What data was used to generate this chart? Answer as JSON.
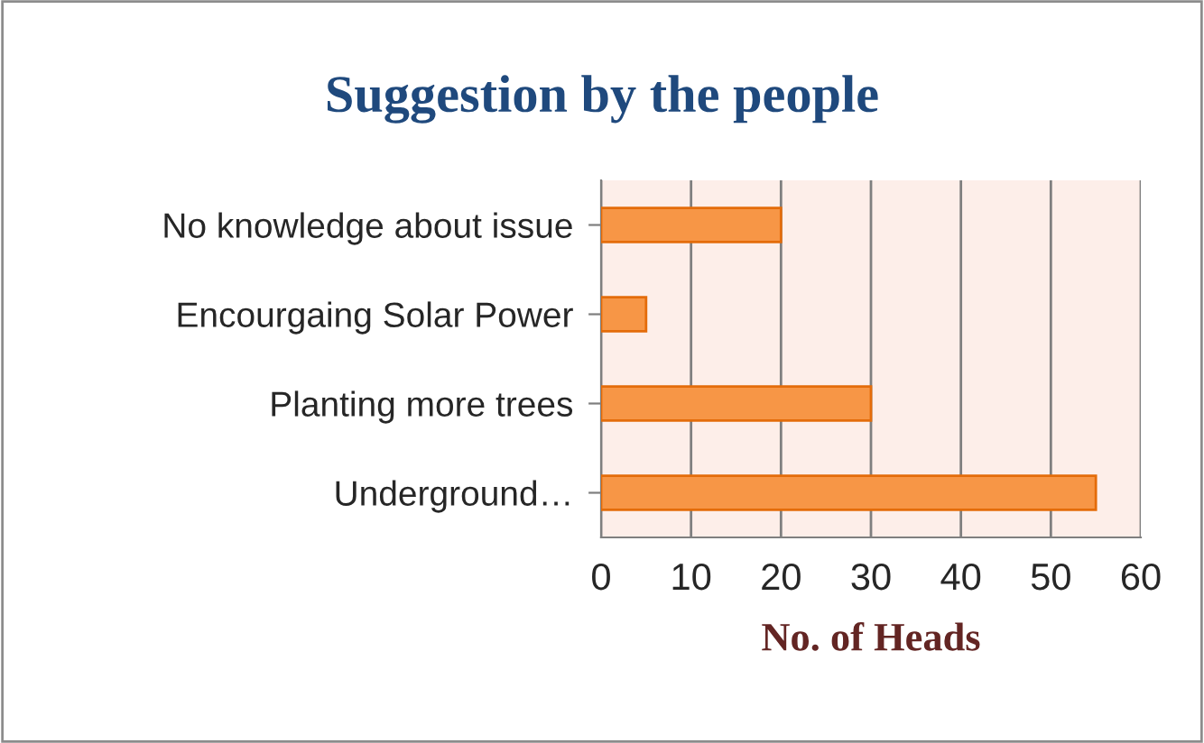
{
  "chart_data": {
    "type": "bar",
    "orientation": "horizontal",
    "title": "Suggestion by the people",
    "xlabel": "No. of Heads",
    "categories": [
      "No knowledge about issue",
      "Encourgaing Solar Power",
      "Planting more trees",
      "Underground…"
    ],
    "values": [
      20,
      5,
      30,
      55
    ],
    "color": "#f79646",
    "xlim": [
      0,
      60
    ],
    "xticks": [
      0,
      10,
      20,
      30,
      40,
      50,
      60
    ],
    "grid": "x",
    "legend": false
  }
}
